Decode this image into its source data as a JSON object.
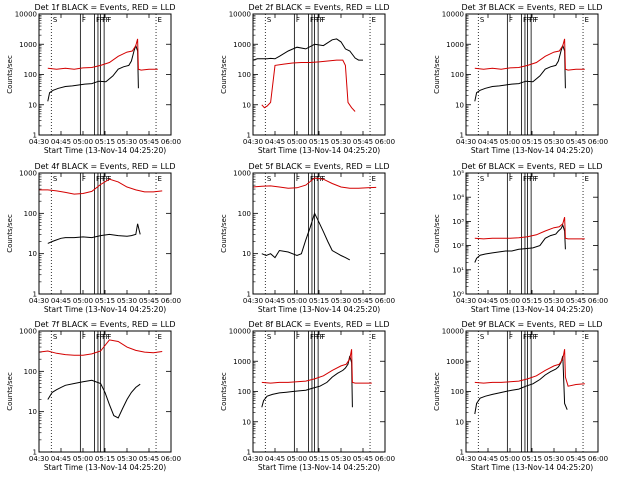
{
  "panel_suffix": "BLACK = Events, RED = LLD",
  "xlabel": "Start Time (13-Nov-14 04:25:20)",
  "ylabel": "Counts/sec",
  "x_tick_labels": [
    "04:30",
    "04:45",
    "05:00",
    "05:15",
    "05:30",
    "05:45",
    "06:00"
  ],
  "x_ticks_hours": [
    4.5,
    4.75,
    5.0,
    5.25,
    5.5,
    5.75,
    6.0
  ],
  "y_tick_labels_decimal": [
    "1",
    "10",
    "100",
    "1000",
    "10000"
  ],
  "y_tick_labels_power": [
    "10⁰",
    "10¹",
    "10²",
    "10³",
    "10⁴",
    "10⁵"
  ],
  "event_labels": [
    "S",
    "F",
    "F",
    "F",
    "F",
    "F",
    "F",
    "E"
  ],
  "dotted_lines_hours": [
    4.64,
    5.83
  ],
  "solid_lines_hours": [
    4.97,
    5.13,
    5.17,
    5.2,
    5.24
  ],
  "colors": {
    "events": "#000000",
    "lld": "#d40000",
    "axes": "#000000"
  },
  "chart_data": [
    {
      "title": "Det 1f",
      "type": "line",
      "xlim": [
        4.5,
        6.0
      ],
      "ylim": [
        1,
        10000
      ],
      "yscale": "log",
      "y_tick_format": "decimal",
      "series": [
        {
          "name": "BLACK = Events",
          "x": [
            4.6,
            4.62,
            4.66,
            4.72,
            4.8,
            4.88,
            4.95,
            5.02,
            5.1,
            5.18,
            5.26,
            5.34,
            5.4,
            5.46,
            5.52,
            5.55,
            5.58,
            5.6,
            5.62,
            5.63
          ],
          "y": [
            13,
            25,
            30,
            35,
            40,
            42,
            45,
            48,
            50,
            60,
            58,
            90,
            150,
            180,
            200,
            280,
            600,
            900,
            600,
            35
          ]
        },
        {
          "name": "RED = LLD",
          "x": [
            4.6,
            4.7,
            4.8,
            4.9,
            5.0,
            5.1,
            5.2,
            5.3,
            5.4,
            5.5,
            5.56,
            5.6,
            5.62,
            5.63,
            5.66,
            5.75,
            5.85
          ],
          "y": [
            160,
            150,
            160,
            150,
            165,
            170,
            200,
            250,
            400,
            550,
            600,
            900,
            1500,
            150,
            140,
            150,
            150
          ]
        }
      ]
    },
    {
      "title": "Det 2f",
      "type": "line",
      "xlim": [
        4.5,
        6.0
      ],
      "ylim": [
        1,
        10000
      ],
      "yscale": "log",
      "y_tick_format": "decimal",
      "series": [
        {
          "name": "BLACK = Events",
          "x": [
            4.5,
            4.55,
            4.6,
            4.66,
            4.7,
            4.75,
            4.8,
            4.9,
            5.0,
            5.1,
            5.2,
            5.3,
            5.4,
            5.45,
            5.5,
            5.55,
            5.6,
            5.66,
            5.7,
            5.75
          ],
          "y": [
            300,
            330,
            330,
            330,
            340,
            330,
            400,
            600,
            800,
            700,
            1000,
            900,
            1400,
            1500,
            1200,
            700,
            600,
            350,
            300,
            300
          ]
        },
        {
          "name": "RED = LLD",
          "x": [
            4.6,
            4.63,
            4.66,
            4.7,
            4.75,
            4.85,
            4.95,
            5.05,
            5.15,
            5.25,
            5.35,
            5.45,
            5.52,
            5.55,
            5.58,
            5.62,
            5.66
          ],
          "y": [
            10,
            8,
            9,
            12,
            200,
            220,
            240,
            250,
            250,
            260,
            280,
            300,
            300,
            200,
            12,
            8,
            6
          ]
        }
      ]
    },
    {
      "title": "Det 3f",
      "type": "line",
      "xlim": [
        4.5,
        6.0
      ],
      "ylim": [
        1,
        10000
      ],
      "yscale": "log",
      "y_tick_format": "decimal",
      "series": [
        {
          "name": "BLACK = Events",
          "x": [
            4.6,
            4.62,
            4.66,
            4.72,
            4.8,
            4.88,
            4.95,
            5.02,
            5.1,
            5.18,
            5.26,
            5.34,
            5.4,
            5.46,
            5.52,
            5.55,
            5.58,
            5.6,
            5.62,
            5.63
          ],
          "y": [
            13,
            25,
            30,
            35,
            40,
            42,
            45,
            48,
            50,
            60,
            58,
            90,
            150,
            180,
            200,
            280,
            600,
            900,
            600,
            35
          ]
        },
        {
          "name": "RED = LLD",
          "x": [
            4.6,
            4.7,
            4.8,
            4.9,
            5.0,
            5.1,
            5.2,
            5.3,
            5.4,
            5.5,
            5.56,
            5.6,
            5.62,
            5.63,
            5.66,
            5.75,
            5.85
          ],
          "y": [
            160,
            150,
            160,
            150,
            165,
            170,
            200,
            250,
            400,
            550,
            600,
            900,
            1500,
            150,
            140,
            150,
            150
          ]
        }
      ]
    },
    {
      "title": "Det 4f",
      "type": "line",
      "xlim": [
        4.5,
        6.0
      ],
      "ylim": [
        1,
        1000
      ],
      "yscale": "log",
      "y_tick_format": "decimal",
      "series": [
        {
          "name": "BLACK = Events",
          "x": [
            4.6,
            4.65,
            4.7,
            4.75,
            4.8,
            4.9,
            5.0,
            5.1,
            5.2,
            5.3,
            5.4,
            5.5,
            5.55,
            5.6,
            5.62,
            5.65
          ],
          "y": [
            18,
            20,
            22,
            24,
            25,
            25,
            26,
            25,
            28,
            30,
            28,
            27,
            28,
            30,
            55,
            30
          ]
        },
        {
          "name": "RED = LLD",
          "x": [
            4.5,
            4.6,
            4.7,
            4.8,
            4.9,
            5.0,
            5.1,
            5.2,
            5.3,
            5.4,
            5.5,
            5.6,
            5.7,
            5.8,
            5.9
          ],
          "y": [
            380,
            380,
            360,
            330,
            300,
            310,
            350,
            520,
            700,
            600,
            450,
            380,
            340,
            340,
            360
          ]
        }
      ]
    },
    {
      "title": "Det 5f",
      "type": "line",
      "xlim": [
        4.5,
        6.0
      ],
      "ylim": [
        1,
        1000
      ],
      "yscale": "log",
      "y_tick_format": "decimal",
      "series": [
        {
          "name": "BLACK = Events",
          "x": [
            4.6,
            4.65,
            4.7,
            4.75,
            4.8,
            4.9,
            5.0,
            5.05,
            5.1,
            5.15,
            5.2,
            5.25,
            5.3,
            5.35,
            5.4,
            5.5,
            5.55,
            5.6
          ],
          "y": [
            10,
            9,
            10,
            8,
            12,
            11,
            9,
            10,
            22,
            45,
            100,
            60,
            35,
            20,
            12,
            9,
            8,
            7
          ]
        },
        {
          "name": "RED = LLD",
          "x": [
            4.5,
            4.6,
            4.7,
            4.8,
            4.9,
            5.0,
            5.1,
            5.2,
            5.3,
            5.4,
            5.5,
            5.6,
            5.7,
            5.8,
            5.9
          ],
          "y": [
            450,
            470,
            480,
            450,
            420,
            430,
            500,
            750,
            700,
            550,
            450,
            420,
            420,
            430,
            440
          ]
        }
      ]
    },
    {
      "title": "Det 6f",
      "type": "line",
      "xlim": [
        4.5,
        6.0
      ],
      "ylim": [
        1,
        100000
      ],
      "yscale": "log",
      "y_tick_format": "power",
      "series": [
        {
          "name": "BLACK = Events",
          "x": [
            4.6,
            4.62,
            4.66,
            4.72,
            4.8,
            4.88,
            4.95,
            5.02,
            5.1,
            5.18,
            5.26,
            5.34,
            5.4,
            5.46,
            5.52,
            5.55,
            5.58,
            5.6,
            5.62,
            5.63
          ],
          "y": [
            20,
            30,
            40,
            45,
            50,
            55,
            60,
            60,
            70,
            75,
            80,
            100,
            200,
            260,
            300,
            400,
            500,
            700,
            400,
            70
          ]
        },
        {
          "name": "RED = LLD",
          "x": [
            4.6,
            4.7,
            4.8,
            4.9,
            5.0,
            5.1,
            5.2,
            5.3,
            5.4,
            5.5,
            5.56,
            5.6,
            5.62,
            5.63,
            5.66,
            5.75,
            5.85
          ],
          "y": [
            200,
            190,
            200,
            200,
            200,
            210,
            230,
            280,
            400,
            550,
            600,
            800,
            1500,
            200,
            190,
            190,
            190
          ]
        }
      ]
    },
    {
      "title": "Det 7f",
      "type": "line",
      "xlim": [
        4.5,
        6.0
      ],
      "ylim": [
        1,
        1000
      ],
      "yscale": "log",
      "y_tick_format": "decimal",
      "series": [
        {
          "name": "BLACK = Events",
          "x": [
            4.6,
            4.65,
            4.7,
            4.75,
            4.8,
            4.9,
            5.0,
            5.1,
            5.2,
            5.25,
            5.3,
            5.35,
            5.4,
            5.45,
            5.5,
            5.55,
            5.6,
            5.65
          ],
          "y": [
            20,
            30,
            35,
            40,
            45,
            50,
            55,
            60,
            50,
            30,
            15,
            8,
            7,
            12,
            20,
            30,
            40,
            48
          ]
        },
        {
          "name": "RED = LLD",
          "x": [
            4.5,
            4.6,
            4.7,
            4.8,
            4.9,
            5.0,
            5.1,
            5.2,
            5.3,
            5.4,
            5.5,
            5.6,
            5.7,
            5.8,
            5.9
          ],
          "y": [
            300,
            320,
            280,
            260,
            250,
            250,
            270,
            320,
            600,
            550,
            400,
            330,
            300,
            290,
            310
          ]
        }
      ]
    },
    {
      "title": "Det 8f",
      "type": "line",
      "xlim": [
        4.5,
        6.0
      ],
      "ylim": [
        1,
        10000
      ],
      "yscale": "log",
      "y_tick_format": "decimal",
      "series": [
        {
          "name": "BLACK = Events",
          "x": [
            4.6,
            4.62,
            4.66,
            4.72,
            4.8,
            4.88,
            4.95,
            5.02,
            5.1,
            5.18,
            5.26,
            5.34,
            5.4,
            5.46,
            5.52,
            5.55,
            5.58,
            5.6,
            5.62,
            5.63
          ],
          "y": [
            30,
            50,
            70,
            80,
            90,
            95,
            100,
            105,
            110,
            130,
            150,
            200,
            300,
            400,
            500,
            600,
            800,
            1500,
            900,
            30
          ]
        },
        {
          "name": "RED = LLD",
          "x": [
            4.6,
            4.7,
            4.8,
            4.9,
            5.0,
            5.1,
            5.2,
            5.3,
            5.4,
            5.5,
            5.56,
            5.6,
            5.62,
            5.63,
            5.66,
            5.75,
            5.85
          ],
          "y": [
            200,
            190,
            200,
            200,
            210,
            220,
            260,
            330,
            500,
            700,
            800,
            1200,
            2500,
            200,
            190,
            190,
            190
          ]
        }
      ]
    },
    {
      "title": "Det 9f",
      "type": "line",
      "xlim": [
        4.5,
        6.0
      ],
      "ylim": [
        1,
        10000
      ],
      "yscale": "log",
      "y_tick_format": "decimal",
      "series": [
        {
          "name": "BLACK = Events",
          "x": [
            4.6,
            4.62,
            4.66,
            4.72,
            4.8,
            4.88,
            4.95,
            5.02,
            5.1,
            5.18,
            5.26,
            5.34,
            5.4,
            5.46,
            5.52,
            5.55,
            5.58,
            5.6,
            5.62,
            5.65
          ],
          "y": [
            18,
            40,
            60,
            70,
            80,
            90,
            100,
            110,
            120,
            150,
            180,
            250,
            350,
            450,
            550,
            650,
            900,
            1500,
            40,
            25
          ]
        },
        {
          "name": "RED = LLD",
          "x": [
            4.6,
            4.7,
            4.8,
            4.9,
            5.0,
            5.1,
            5.2,
            5.3,
            5.4,
            5.5,
            5.56,
            5.6,
            5.62,
            5.63,
            5.66,
            5.75,
            5.85
          ],
          "y": [
            200,
            190,
            200,
            200,
            210,
            220,
            260,
            330,
            500,
            700,
            800,
            1200,
            2500,
            300,
            150,
            170,
            180
          ]
        }
      ]
    }
  ]
}
